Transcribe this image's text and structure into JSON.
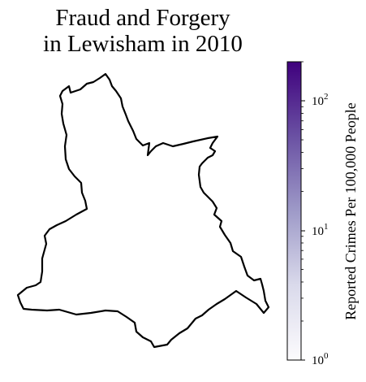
{
  "title": {
    "line1": "Fraud and Forgery",
    "line2": "in Lewisham in 2010"
  },
  "map": {
    "region": "Lewisham",
    "year": "2010",
    "crime_type": "Fraud and Forgery",
    "fill_color": "#ffffff",
    "outline_color": "#000000"
  },
  "colorbar": {
    "label": "Reported Crimes Per 100,000 People",
    "scale": "log",
    "range": [
      1,
      200
    ],
    "colormap": [
      "#fcfbfd",
      "#dadaeb",
      "#9e9ac8",
      "#6a51a3",
      "#3f007d"
    ],
    "ticks": [
      {
        "value": 1,
        "base": "10",
        "exp": "0"
      },
      {
        "value": 10,
        "base": "10",
        "exp": "1"
      },
      {
        "value": 100,
        "base": "10",
        "exp": "2"
      }
    ]
  }
}
